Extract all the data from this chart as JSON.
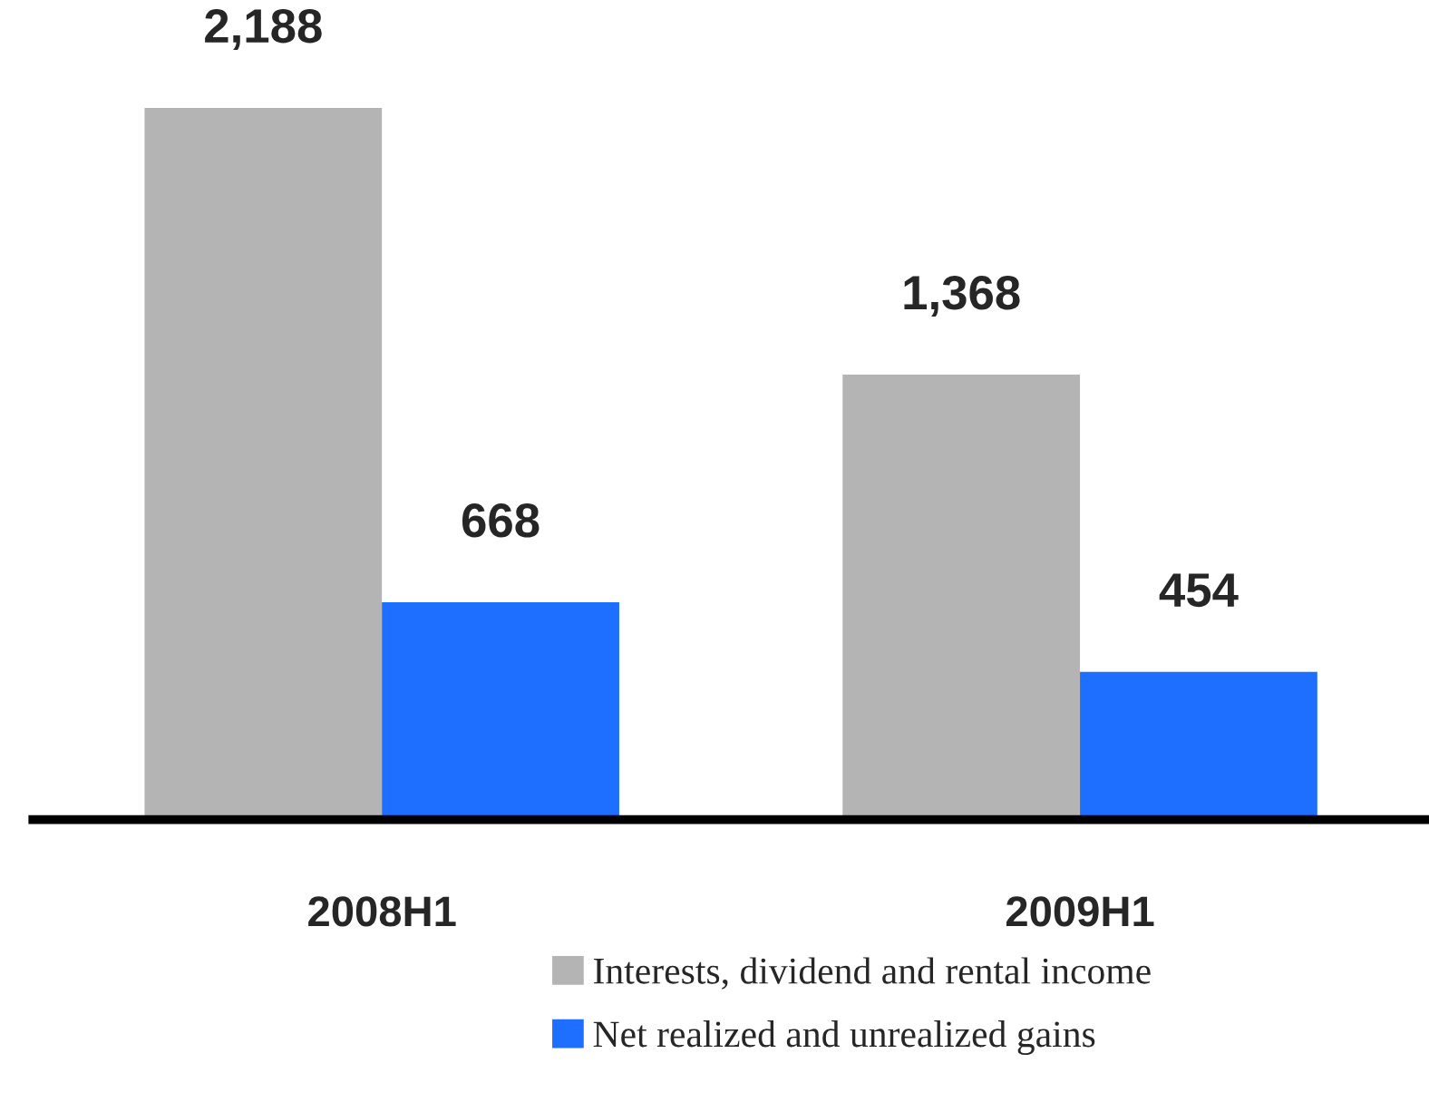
{
  "chart_data": {
    "type": "bar",
    "categories": [
      "2008H1",
      "2009H1"
    ],
    "series": [
      {
        "name": "Interests, dividend and rental income",
        "color": "#b4b4b4",
        "values": [
          2188,
          1368
        ],
        "value_labels": [
          "2,188",
          "1,368"
        ]
      },
      {
        "name": "Net realized and unrealized gains",
        "color": "#1e6eff",
        "values": [
          668,
          454
        ],
        "value_labels": [
          "668",
          "454"
        ]
      }
    ],
    "grid": false,
    "legend": "bottom",
    "tick_labels": "x"
  }
}
